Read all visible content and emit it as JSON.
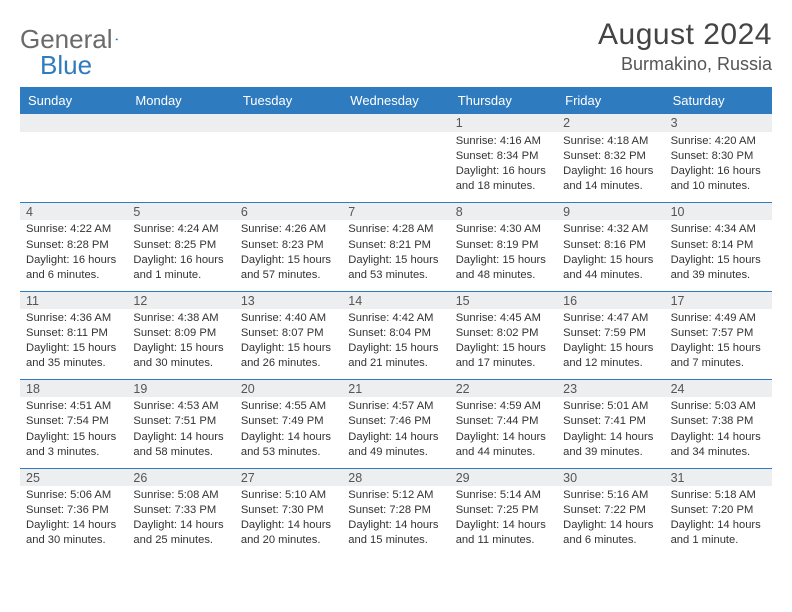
{
  "brand": {
    "part1": "General",
    "part2": "Blue"
  },
  "title": "August 2024",
  "location": "Burmakino, Russia",
  "colors": {
    "header_bg": "#2f7bbf",
    "daynum_bg": "#eceeef",
    "rule": "#2f7bbf",
    "text": "#333333",
    "muted": "#6a6a6a"
  },
  "weekdays": [
    "Sunday",
    "Monday",
    "Tuesday",
    "Wednesday",
    "Thursday",
    "Friday",
    "Saturday"
  ],
  "weeks": [
    {
      "days": [
        null,
        null,
        null,
        null,
        {
          "n": "1",
          "sunrise": "Sunrise: 4:16 AM",
          "sunset": "Sunset: 8:34 PM",
          "day1": "Daylight: 16 hours",
          "day2": "and 18 minutes."
        },
        {
          "n": "2",
          "sunrise": "Sunrise: 4:18 AM",
          "sunset": "Sunset: 8:32 PM",
          "day1": "Daylight: 16 hours",
          "day2": "and 14 minutes."
        },
        {
          "n": "3",
          "sunrise": "Sunrise: 4:20 AM",
          "sunset": "Sunset: 8:30 PM",
          "day1": "Daylight: 16 hours",
          "day2": "and 10 minutes."
        }
      ]
    },
    {
      "days": [
        {
          "n": "4",
          "sunrise": "Sunrise: 4:22 AM",
          "sunset": "Sunset: 8:28 PM",
          "day1": "Daylight: 16 hours",
          "day2": "and 6 minutes."
        },
        {
          "n": "5",
          "sunrise": "Sunrise: 4:24 AM",
          "sunset": "Sunset: 8:25 PM",
          "day1": "Daylight: 16 hours",
          "day2": "and 1 minute."
        },
        {
          "n": "6",
          "sunrise": "Sunrise: 4:26 AM",
          "sunset": "Sunset: 8:23 PM",
          "day1": "Daylight: 15 hours",
          "day2": "and 57 minutes."
        },
        {
          "n": "7",
          "sunrise": "Sunrise: 4:28 AM",
          "sunset": "Sunset: 8:21 PM",
          "day1": "Daylight: 15 hours",
          "day2": "and 53 minutes."
        },
        {
          "n": "8",
          "sunrise": "Sunrise: 4:30 AM",
          "sunset": "Sunset: 8:19 PM",
          "day1": "Daylight: 15 hours",
          "day2": "and 48 minutes."
        },
        {
          "n": "9",
          "sunrise": "Sunrise: 4:32 AM",
          "sunset": "Sunset: 8:16 PM",
          "day1": "Daylight: 15 hours",
          "day2": "and 44 minutes."
        },
        {
          "n": "10",
          "sunrise": "Sunrise: 4:34 AM",
          "sunset": "Sunset: 8:14 PM",
          "day1": "Daylight: 15 hours",
          "day2": "and 39 minutes."
        }
      ]
    },
    {
      "days": [
        {
          "n": "11",
          "sunrise": "Sunrise: 4:36 AM",
          "sunset": "Sunset: 8:11 PM",
          "day1": "Daylight: 15 hours",
          "day2": "and 35 minutes."
        },
        {
          "n": "12",
          "sunrise": "Sunrise: 4:38 AM",
          "sunset": "Sunset: 8:09 PM",
          "day1": "Daylight: 15 hours",
          "day2": "and 30 minutes."
        },
        {
          "n": "13",
          "sunrise": "Sunrise: 4:40 AM",
          "sunset": "Sunset: 8:07 PM",
          "day1": "Daylight: 15 hours",
          "day2": "and 26 minutes."
        },
        {
          "n": "14",
          "sunrise": "Sunrise: 4:42 AM",
          "sunset": "Sunset: 8:04 PM",
          "day1": "Daylight: 15 hours",
          "day2": "and 21 minutes."
        },
        {
          "n": "15",
          "sunrise": "Sunrise: 4:45 AM",
          "sunset": "Sunset: 8:02 PM",
          "day1": "Daylight: 15 hours",
          "day2": "and 17 minutes."
        },
        {
          "n": "16",
          "sunrise": "Sunrise: 4:47 AM",
          "sunset": "Sunset: 7:59 PM",
          "day1": "Daylight: 15 hours",
          "day2": "and 12 minutes."
        },
        {
          "n": "17",
          "sunrise": "Sunrise: 4:49 AM",
          "sunset": "Sunset: 7:57 PM",
          "day1": "Daylight: 15 hours",
          "day2": "and 7 minutes."
        }
      ]
    },
    {
      "days": [
        {
          "n": "18",
          "sunrise": "Sunrise: 4:51 AM",
          "sunset": "Sunset: 7:54 PM",
          "day1": "Daylight: 15 hours",
          "day2": "and 3 minutes."
        },
        {
          "n": "19",
          "sunrise": "Sunrise: 4:53 AM",
          "sunset": "Sunset: 7:51 PM",
          "day1": "Daylight: 14 hours",
          "day2": "and 58 minutes."
        },
        {
          "n": "20",
          "sunrise": "Sunrise: 4:55 AM",
          "sunset": "Sunset: 7:49 PM",
          "day1": "Daylight: 14 hours",
          "day2": "and 53 minutes."
        },
        {
          "n": "21",
          "sunrise": "Sunrise: 4:57 AM",
          "sunset": "Sunset: 7:46 PM",
          "day1": "Daylight: 14 hours",
          "day2": "and 49 minutes."
        },
        {
          "n": "22",
          "sunrise": "Sunrise: 4:59 AM",
          "sunset": "Sunset: 7:44 PM",
          "day1": "Daylight: 14 hours",
          "day2": "and 44 minutes."
        },
        {
          "n": "23",
          "sunrise": "Sunrise: 5:01 AM",
          "sunset": "Sunset: 7:41 PM",
          "day1": "Daylight: 14 hours",
          "day2": "and 39 minutes."
        },
        {
          "n": "24",
          "sunrise": "Sunrise: 5:03 AM",
          "sunset": "Sunset: 7:38 PM",
          "day1": "Daylight: 14 hours",
          "day2": "and 34 minutes."
        }
      ]
    },
    {
      "days": [
        {
          "n": "25",
          "sunrise": "Sunrise: 5:06 AM",
          "sunset": "Sunset: 7:36 PM",
          "day1": "Daylight: 14 hours",
          "day2": "and 30 minutes."
        },
        {
          "n": "26",
          "sunrise": "Sunrise: 5:08 AM",
          "sunset": "Sunset: 7:33 PM",
          "day1": "Daylight: 14 hours",
          "day2": "and 25 minutes."
        },
        {
          "n": "27",
          "sunrise": "Sunrise: 5:10 AM",
          "sunset": "Sunset: 7:30 PM",
          "day1": "Daylight: 14 hours",
          "day2": "and 20 minutes."
        },
        {
          "n": "28",
          "sunrise": "Sunrise: 5:12 AM",
          "sunset": "Sunset: 7:28 PM",
          "day1": "Daylight: 14 hours",
          "day2": "and 15 minutes."
        },
        {
          "n": "29",
          "sunrise": "Sunrise: 5:14 AM",
          "sunset": "Sunset: 7:25 PM",
          "day1": "Daylight: 14 hours",
          "day2": "and 11 minutes."
        },
        {
          "n": "30",
          "sunrise": "Sunrise: 5:16 AM",
          "sunset": "Sunset: 7:22 PM",
          "day1": "Daylight: 14 hours",
          "day2": "and 6 minutes."
        },
        {
          "n": "31",
          "sunrise": "Sunrise: 5:18 AM",
          "sunset": "Sunset: 7:20 PM",
          "day1": "Daylight: 14 hours",
          "day2": "and 1 minute."
        }
      ]
    }
  ]
}
